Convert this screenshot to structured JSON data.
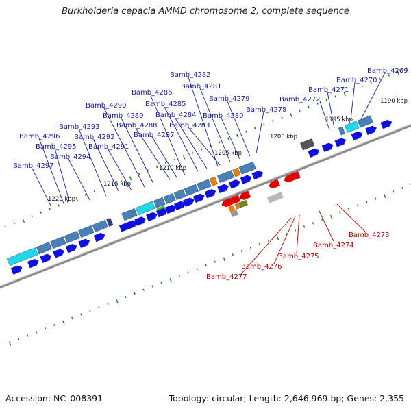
{
  "title": "Burkholderia cepacia AMMD chromosome 2, complete sequence",
  "footer": {
    "accession": "Accession: NC_008391",
    "summary": "Topology: circular; Length: 2,646,969 bp; Genes: 2,355"
  },
  "colors": {
    "forward_gene": "#1010dd",
    "reverse_gene": "#e00000",
    "forward_label": "#1a1aaa",
    "reverse_label": "#b30000",
    "backbone": "#888888",
    "tick": "#1a7a1a",
    "cyan_block": "#22d8e8",
    "steel_block": "#4a80b8",
    "orange_block": "#f08000",
    "green_block": "#44bb22",
    "olive_block": "#6a8a20",
    "gray_block": "#9a9a9a",
    "dark_gray_block": "#555555"
  },
  "scale_labels": [
    "1190 kbp",
    "1195 kbp",
    "1200 kbp",
    "1205 kbp",
    "1210 kbp",
    "1215 kbp",
    "1220 kbp"
  ],
  "forward_genes": [
    "Bamb_4297",
    "Bamb_4296",
    "Bamb_4295",
    "Bamb_4294",
    "Bamb_4293",
    "Bamb_4292",
    "Bamb_4291",
    "Bamb_4290",
    "Bamb_4289",
    "Bamb_4288",
    "Bamb_4287",
    "Bamb_4286",
    "Bamb_4285",
    "Bamb_4284",
    "Bamb_4283",
    "Bamb_4282",
    "Bamb_4281",
    "Bamb_4280",
    "Bamb_4279",
    "Bamb_4278",
    "Bamb_4272",
    "Bamb_4271",
    "Bamb_4270",
    "Bamb_4269"
  ],
  "reverse_genes": [
    "Bamb_4277",
    "Bamb_4276",
    "Bamb_4275",
    "Bamb_4274",
    "Bamb_4273"
  ]
}
